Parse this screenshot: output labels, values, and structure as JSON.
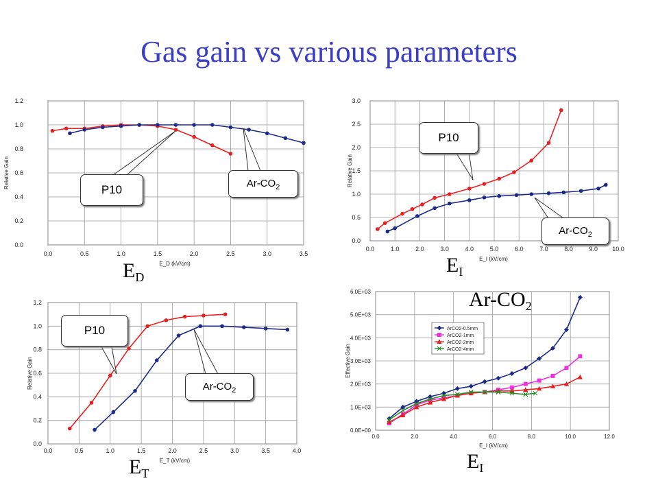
{
  "title": "Gas gain vs various parameters",
  "colors": {
    "title": "#3b3fc6",
    "p10": "#e82020",
    "arco2": "#1c2a8a",
    "grid": "#9a9a9a"
  },
  "labels": {
    "ed": {
      "main": "E",
      "sub": "D"
    },
    "ei": {
      "main": "E",
      "sub": "I"
    },
    "et": {
      "main": "E",
      "sub": "T"
    },
    "ei2": {
      "main": "E",
      "sub": "I"
    },
    "arco2": {
      "main": "Ar-CO",
      "sub": "2"
    }
  },
  "callouts": {
    "tl_p10": "P10",
    "tl_arco2": {
      "main": "Ar-CO",
      "sub": "2"
    },
    "tr_p10": "P10",
    "tr_arco2": {
      "main": "Ar-CO",
      "sub": "2"
    },
    "bl_p10": "P10",
    "bl_arco2": {
      "main": "Ar-CO",
      "sub": "2"
    }
  },
  "chart_data": [
    {
      "id": "ed",
      "type": "line",
      "xlabel": "E_D (kV/cm)",
      "ylabel": "Relative Gain",
      "xlim": [
        0.0,
        3.5
      ],
      "ylim": [
        0.0,
        1.2
      ],
      "xticks": [
        "0.0",
        "0.5",
        "1.0",
        "1.5",
        "2.0",
        "2.5",
        "3.0",
        "3.5"
      ],
      "yticks": [
        "0.0",
        "0.2",
        "0.4",
        "0.6",
        "0.8",
        "1.0",
        "1.2"
      ],
      "xtick_values": [
        0,
        0.5,
        1,
        1.5,
        2,
        2.5,
        3,
        3.5
      ],
      "ytick_values": [
        0,
        0.2,
        0.4,
        0.6,
        0.8,
        1.0,
        1.2
      ],
      "grid": true,
      "series": [
        {
          "color": "p10",
          "marker": "circle",
          "x": [
            0.06,
            0.25,
            0.5,
            0.75,
            1.0,
            1.25,
            1.5,
            1.75,
            2.0,
            2.25,
            2.5
          ],
          "y": [
            0.95,
            0.97,
            0.97,
            0.99,
            1.0,
            1.0,
            0.99,
            0.96,
            0.9,
            0.83,
            0.76
          ]
        },
        {
          "color": "arco2",
          "marker": "circle",
          "x": [
            0.3,
            0.5,
            0.75,
            1.0,
            1.25,
            1.5,
            1.75,
            2.0,
            2.25,
            2.5,
            2.75,
            3.0,
            3.25,
            3.5
          ],
          "y": [
            0.93,
            0.96,
            0.98,
            0.99,
            1.0,
            1.0,
            1.0,
            1.0,
            1.0,
            0.98,
            0.96,
            0.93,
            0.89,
            0.85
          ]
        }
      ]
    },
    {
      "id": "ei",
      "type": "line",
      "xlabel": "E_I (kV/cm)",
      "ylabel": "Relative Gain",
      "xlim": [
        0.0,
        10.0
      ],
      "ylim": [
        0.0,
        3.0
      ],
      "xticks": [
        "0.0",
        "1.0",
        "2.0",
        "3.0",
        "4.0",
        "5.0",
        "6.0",
        "7.0",
        "8.0",
        "9.0",
        "10.0"
      ],
      "yticks": [
        "0.0",
        "0.5",
        "1.0",
        "1.5",
        "2.0",
        "2.5",
        "3.0"
      ],
      "xtick_values": [
        0,
        1,
        2,
        3,
        4,
        5,
        6,
        7,
        8,
        9,
        10
      ],
      "ytick_values": [
        0,
        0.5,
        1.0,
        1.5,
        2.0,
        2.5,
        3.0
      ],
      "grid": true,
      "series": [
        {
          "color": "p10",
          "marker": "circle",
          "x": [
            0.3,
            0.6,
            1.3,
            1.7,
            2.1,
            2.6,
            3.2,
            4.0,
            4.6,
            5.2,
            5.8,
            6.5,
            7.2,
            7.7
          ],
          "y": [
            0.25,
            0.38,
            0.58,
            0.68,
            0.78,
            0.92,
            1.0,
            1.12,
            1.22,
            1.33,
            1.47,
            1.72,
            2.1,
            2.8
          ]
        },
        {
          "color": "arco2",
          "marker": "circle",
          "x": [
            0.7,
            1.0,
            1.9,
            2.6,
            3.2,
            4.0,
            4.6,
            5.2,
            5.9,
            6.5,
            7.2,
            7.8,
            8.5,
            9.2,
            9.5
          ],
          "y": [
            0.2,
            0.27,
            0.53,
            0.7,
            0.8,
            0.87,
            0.93,
            0.96,
            0.98,
            1.0,
            1.02,
            1.04,
            1.07,
            1.12,
            1.2
          ]
        }
      ]
    },
    {
      "id": "et",
      "type": "line",
      "xlabel": "E_T (kV/cm)",
      "ylabel": "Relative Gain",
      "xlim": [
        0.0,
        4.0
      ],
      "ylim": [
        0.0,
        1.2
      ],
      "xticks": [
        "0.0",
        "0.5",
        "1.0",
        "1.5",
        "2.0",
        "2.5",
        "3.0",
        "3.5",
        "4.0"
      ],
      "yticks": [
        "0.0",
        "0.2",
        "0.4",
        "0.6",
        "0.8",
        "1.0",
        "1.2"
      ],
      "xtick_values": [
        0,
        0.5,
        1,
        1.5,
        2,
        2.5,
        3,
        3.5,
        4
      ],
      "ytick_values": [
        0,
        0.2,
        0.4,
        0.6,
        0.8,
        1.0,
        1.2
      ],
      "grid": true,
      "series": [
        {
          "color": "p10",
          "marker": "circle",
          "x": [
            0.35,
            0.7,
            1.0,
            1.3,
            1.6,
            1.9,
            2.2,
            2.5,
            2.85
          ],
          "y": [
            0.13,
            0.35,
            0.58,
            0.81,
            1.0,
            1.05,
            1.08,
            1.09,
            1.1
          ]
        },
        {
          "color": "arco2",
          "marker": "circle",
          "x": [
            0.75,
            1.05,
            1.4,
            1.75,
            2.1,
            2.45,
            2.8,
            3.15,
            3.5,
            3.85
          ],
          "y": [
            0.12,
            0.27,
            0.45,
            0.71,
            0.92,
            1.0,
            1.0,
            0.99,
            0.98,
            0.97
          ]
        }
      ]
    },
    {
      "id": "ei_arco2",
      "type": "line",
      "xlabel": "E_I (kV/cm)",
      "ylabel": "Effective Gain",
      "xlim": [
        0.0,
        12.0
      ],
      "ylim": [
        0,
        6000
      ],
      "xticks": [
        "0.0",
        "2.0",
        "4.0",
        "6.0",
        "8.0",
        "10.0",
        "12.0"
      ],
      "yticks": [
        "0.0E+00",
        "1.0E+03",
        "2.0E+03",
        "3.0E+03",
        "4.0E+03",
        "5.0E+03",
        "6.0E+03"
      ],
      "xtick_values": [
        0,
        2,
        4,
        6,
        8,
        10,
        12
      ],
      "ytick_values": [
        0,
        1000,
        2000,
        3000,
        4000,
        5000,
        6000
      ],
      "grid": true,
      "legend": "top-left",
      "series": [
        {
          "name": "ArCO2-0.5mm",
          "color": "#1c2a8a",
          "marker": "diamond",
          "x": [
            0.7,
            1.4,
            2.1,
            2.8,
            3.5,
            4.2,
            4.9,
            5.6,
            6.3,
            7.0,
            7.7,
            8.4,
            9.1,
            9.8,
            10.5
          ],
          "y": [
            500,
            1000,
            1250,
            1450,
            1600,
            1800,
            1900,
            2100,
            2250,
            2450,
            2700,
            3100,
            3550,
            4350,
            5750
          ]
        },
        {
          "name": "ArCO2-1mm",
          "color": "#ee33dd",
          "marker": "square",
          "x": [
            0.7,
            1.4,
            2.1,
            2.8,
            3.5,
            4.2,
            4.9,
            5.6,
            6.3,
            7.0,
            7.7,
            8.4,
            9.1,
            9.8,
            10.5
          ],
          "y": [
            300,
            700,
            1100,
            1300,
            1400,
            1500,
            1600,
            1650,
            1750,
            1850,
            2000,
            2150,
            2350,
            2700,
            3200
          ]
        },
        {
          "name": "ArCO2-2mm",
          "color": "#e82020",
          "marker": "triangle",
          "x": [
            0.7,
            1.4,
            2.1,
            2.8,
            3.5,
            4.2,
            4.9,
            5.6,
            6.3,
            7.0,
            7.7,
            8.4,
            9.1,
            9.8,
            10.5
          ],
          "y": [
            350,
            650,
            1000,
            1200,
            1350,
            1500,
            1600,
            1650,
            1700,
            1700,
            1750,
            1800,
            1900,
            2000,
            2300
          ]
        },
        {
          "name": "ArCO2-4mm",
          "color": "#2a8a2a",
          "marker": "cross",
          "x": [
            0.7,
            1.4,
            2.1,
            2.8,
            3.5,
            4.2,
            4.9,
            5.6,
            6.3,
            7.0,
            7.7,
            8.2
          ],
          "y": [
            450,
            850,
            1150,
            1350,
            1500,
            1550,
            1650,
            1650,
            1650,
            1600,
            1550,
            1600
          ]
        }
      ]
    }
  ]
}
